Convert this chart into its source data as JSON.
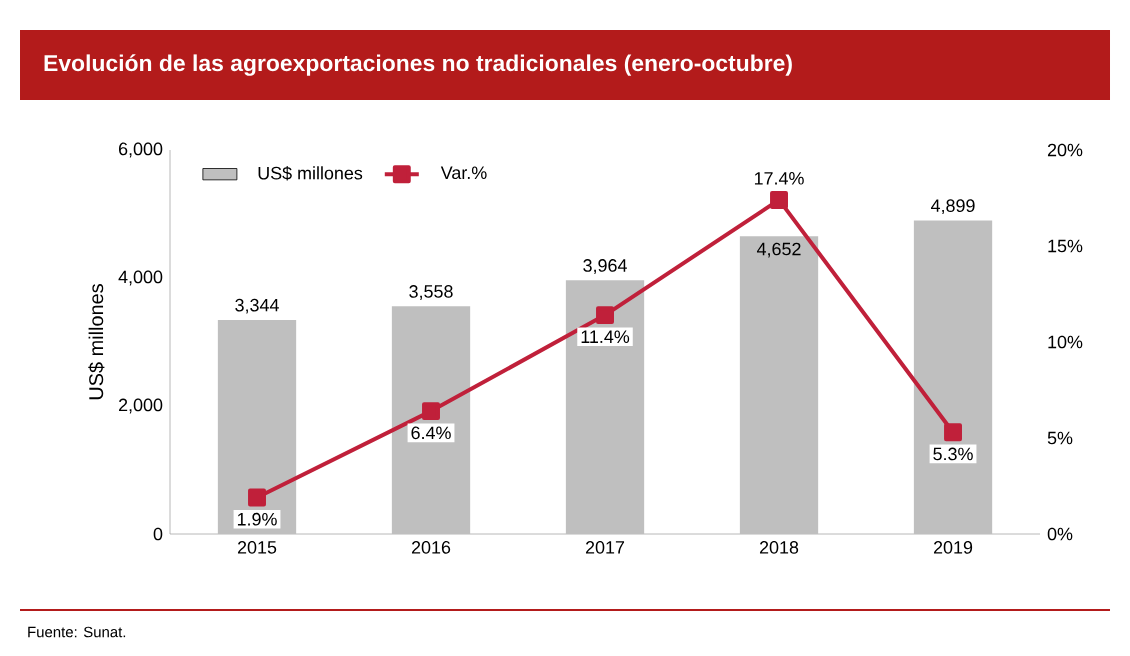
{
  "chart_data": {
    "type": "bar",
    "title": "Evolución de las agroexportaciones no tradicionales (enero-octubre)",
    "categories": [
      "2015",
      "2016",
      "2017",
      "2018",
      "2019"
    ],
    "series": [
      {
        "name": "US$ millones",
        "color": "#bfbfbf",
        "values": [
          3344,
          3558,
          3964,
          4652,
          4899
        ],
        "value_labels": [
          "3,344",
          "3,558",
          "3,964",
          "4,652",
          "4,899"
        ]
      },
      {
        "name": "Var.%",
        "type": "line",
        "axis": "y2",
        "color": "#c0203a",
        "marker": "square",
        "values": [
          1.9,
          6.4,
          11.4,
          17.4,
          5.3
        ],
        "value_labels": [
          "1.9%",
          "6.4%",
          "11.4%",
          "17.4%",
          "5.3%"
        ]
      }
    ],
    "ylabel": "US$ millones",
    "ylim": [
      0,
      6000
    ],
    "yticks": [
      0,
      {
        "value": 2000,
        "label": "2,000"
      },
      {
        "value": 4000,
        "label": "4,000"
      },
      {
        "value": 6000,
        "label": "6,000"
      }
    ],
    "y2lim": [
      0,
      20
    ],
    "y2ticks": [
      {
        "value": 0,
        "label": "0%"
      },
      {
        "value": 5,
        "label": "5%"
      },
      {
        "value": 10,
        "label": "10%"
      },
      {
        "value": 15,
        "label": "15%"
      },
      {
        "value": 20,
        "label": "20%"
      }
    ],
    "legend": "top",
    "grid": false,
    "annotations": [
      "Fuente: Sunat."
    ]
  }
}
